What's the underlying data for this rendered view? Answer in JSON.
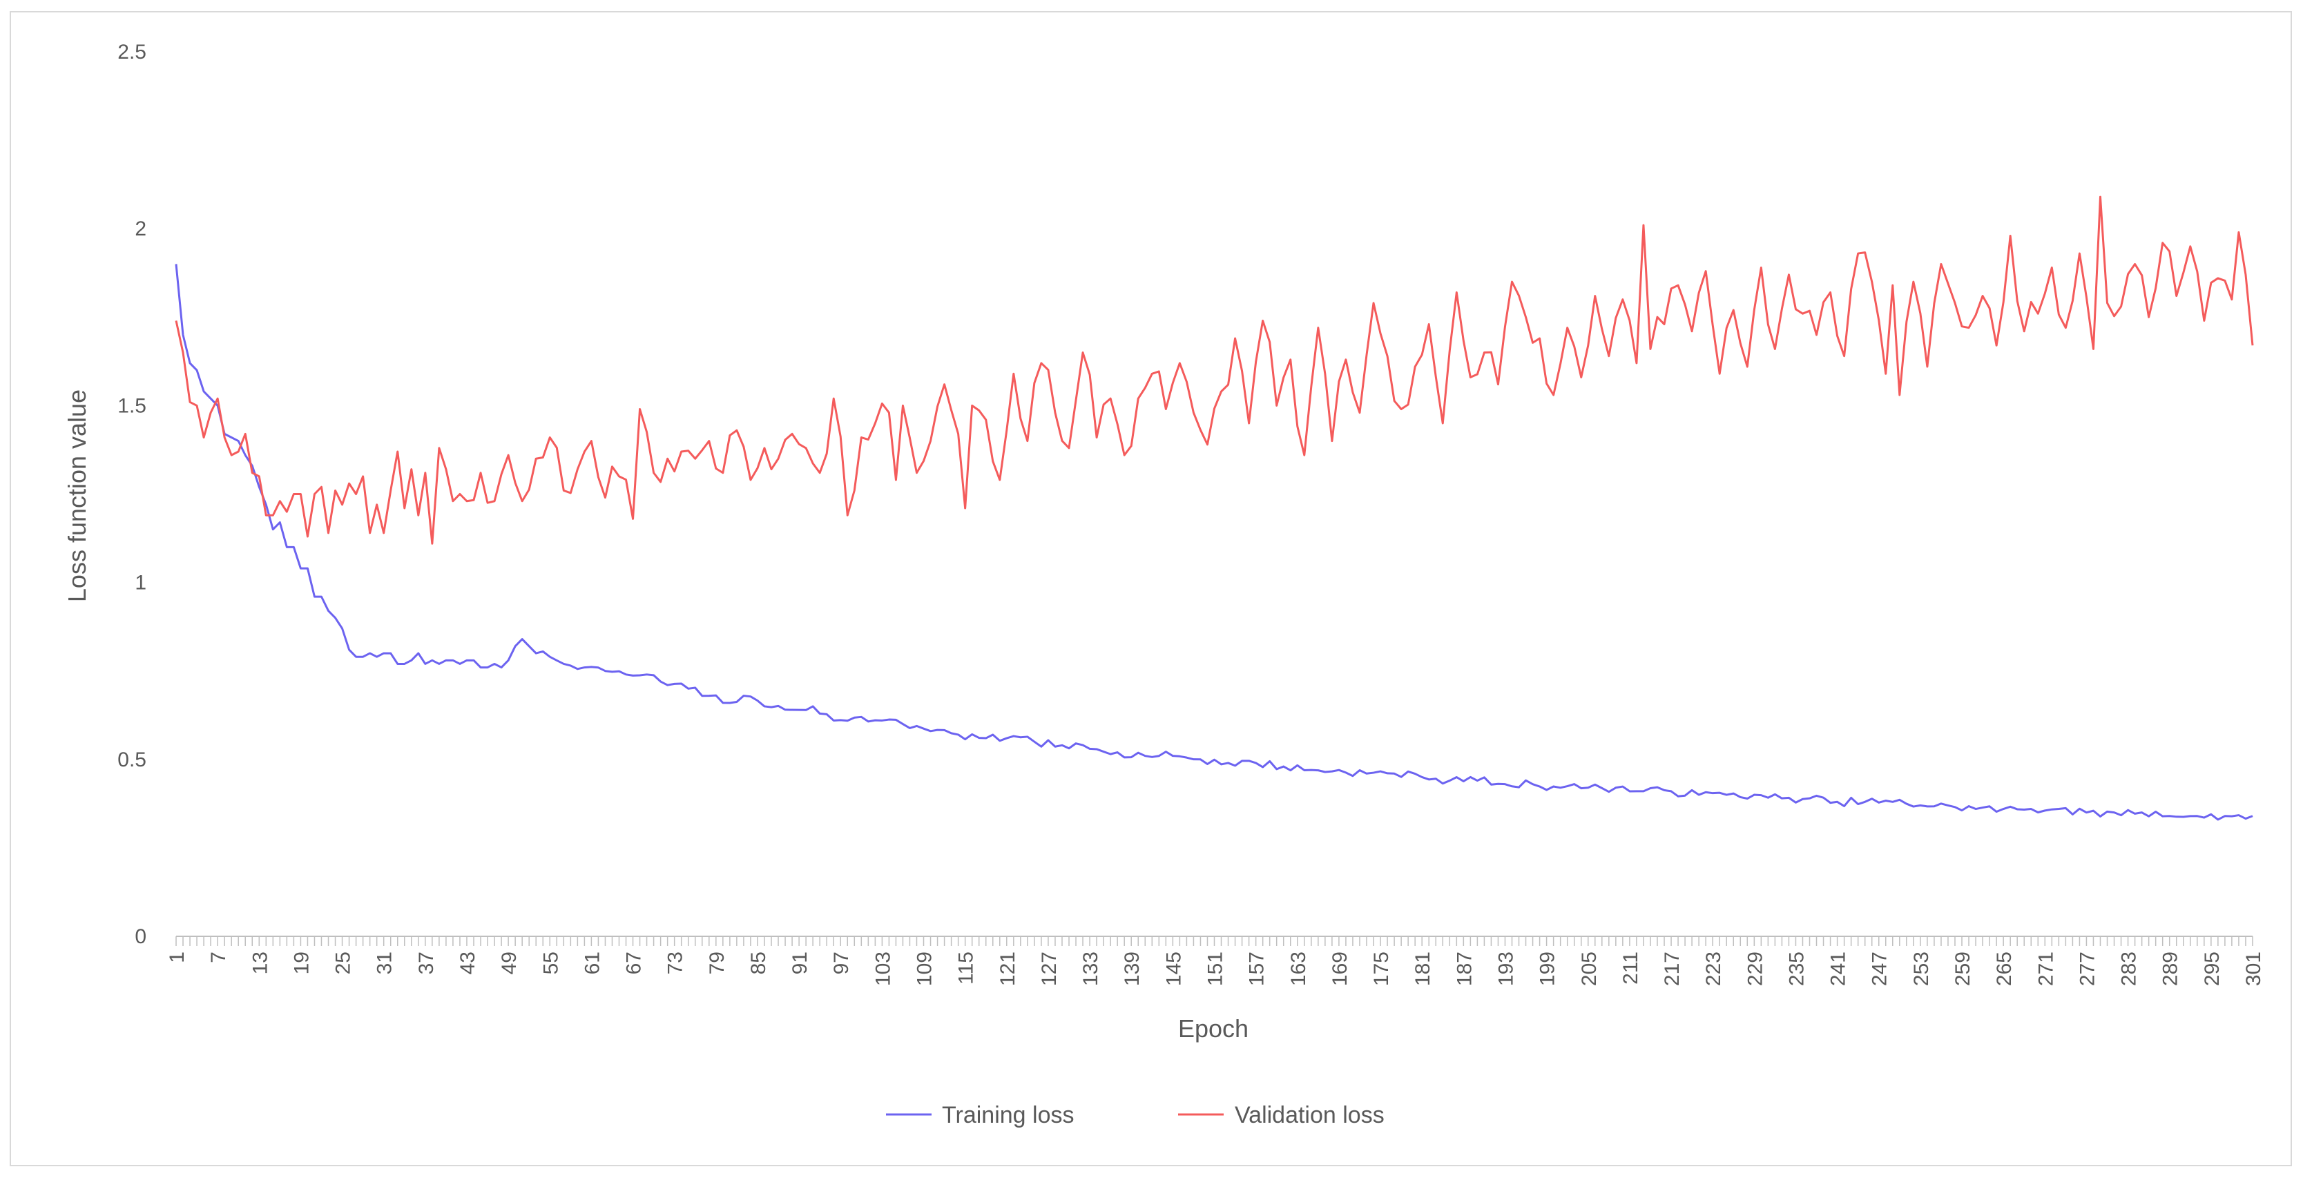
{
  "chart_data": {
    "type": "line",
    "title": "",
    "xlabel": "Epoch",
    "ylabel": "Loss function value",
    "x": {
      "start": 1,
      "end": 301,
      "tick_step": 6
    },
    "ylim": [
      0,
      2.5
    ],
    "yticks": [
      0,
      0.5,
      1,
      1.5,
      2,
      2.5
    ],
    "ytick_labels": [
      "0",
      "0.5",
      "1",
      "1.5",
      "2",
      "2.5"
    ],
    "grid": false,
    "legend_position": "bottom-center",
    "series": [
      {
        "name": "Training loss",
        "color": "#6c63f0",
        "keypoints": [
          [
            1,
            1.9
          ],
          [
            2,
            1.7
          ],
          [
            3,
            1.62
          ],
          [
            4,
            1.6
          ],
          [
            5,
            1.54
          ],
          [
            6,
            1.52
          ],
          [
            7,
            1.5
          ],
          [
            8,
            1.42
          ],
          [
            9,
            1.41
          ],
          [
            10,
            1.4
          ],
          [
            11,
            1.36
          ],
          [
            12,
            1.33
          ],
          [
            13,
            1.27
          ],
          [
            14,
            1.22
          ],
          [
            15,
            1.15
          ],
          [
            16,
            1.17
          ],
          [
            17,
            1.1
          ],
          [
            18,
            1.1
          ],
          [
            19,
            1.04
          ],
          [
            20,
            1.04
          ],
          [
            21,
            0.96
          ],
          [
            22,
            0.96
          ],
          [
            23,
            0.92
          ],
          [
            24,
            0.9
          ],
          [
            25,
            0.87
          ],
          [
            26,
            0.81
          ],
          [
            27,
            0.79
          ],
          [
            28,
            0.79
          ],
          [
            29,
            0.8
          ],
          [
            30,
            0.79
          ],
          [
            31,
            0.8
          ],
          [
            32,
            0.8
          ],
          [
            33,
            0.77
          ],
          [
            34,
            0.77
          ],
          [
            35,
            0.78
          ],
          [
            36,
            0.8
          ],
          [
            37,
            0.77
          ],
          [
            38,
            0.78
          ],
          [
            39,
            0.77
          ],
          [
            40,
            0.78
          ],
          [
            41,
            0.78
          ],
          [
            42,
            0.77
          ],
          [
            43,
            0.78
          ],
          [
            44,
            0.78
          ],
          [
            45,
            0.76
          ],
          [
            46,
            0.76
          ],
          [
            47,
            0.77
          ],
          [
            48,
            0.76
          ],
          [
            49,
            0.78
          ],
          [
            50,
            0.82
          ],
          [
            51,
            0.84
          ],
          [
            52,
            0.82
          ],
          [
            53,
            0.8
          ],
          [
            55,
            0.79
          ],
          [
            57,
            0.77
          ],
          [
            60,
            0.76
          ],
          [
            63,
            0.75
          ],
          [
            66,
            0.74
          ],
          [
            69,
            0.74
          ],
          [
            72,
            0.71
          ],
          [
            75,
            0.7
          ],
          [
            78,
            0.68
          ],
          [
            80,
            0.66
          ],
          [
            83,
            0.68
          ],
          [
            86,
            0.65
          ],
          [
            90,
            0.64
          ],
          [
            93,
            0.65
          ],
          [
            96,
            0.61
          ],
          [
            100,
            0.62
          ],
          [
            103,
            0.61
          ],
          [
            106,
            0.6
          ],
          [
            110,
            0.58
          ],
          [
            114,
            0.57
          ],
          [
            118,
            0.56
          ],
          [
            121,
            0.56
          ],
          [
            125,
            0.55
          ],
          [
            129,
            0.54
          ],
          [
            133,
            0.53
          ],
          [
            137,
            0.52
          ],
          [
            141,
            0.51
          ],
          [
            145,
            0.51
          ],
          [
            149,
            0.5
          ],
          [
            153,
            0.49
          ],
          [
            157,
            0.49
          ],
          [
            161,
            0.48
          ],
          [
            165,
            0.47
          ],
          [
            169,
            0.47
          ],
          [
            173,
            0.46
          ],
          [
            177,
            0.46
          ],
          [
            181,
            0.45
          ],
          [
            185,
            0.44
          ],
          [
            189,
            0.44
          ],
          [
            193,
            0.43
          ],
          [
            197,
            0.43
          ],
          [
            201,
            0.42
          ],
          [
            205,
            0.42
          ],
          [
            209,
            0.42
          ],
          [
            213,
            0.41
          ],
          [
            217,
            0.41
          ],
          [
            221,
            0.4
          ],
          [
            225,
            0.4
          ],
          [
            229,
            0.4
          ],
          [
            233,
            0.39
          ],
          [
            237,
            0.39
          ],
          [
            241,
            0.38
          ],
          [
            245,
            0.38
          ],
          [
            249,
            0.38
          ],
          [
            253,
            0.37
          ],
          [
            257,
            0.37
          ],
          [
            261,
            0.36
          ],
          [
            265,
            0.36
          ],
          [
            269,
            0.36
          ],
          [
            273,
            0.36
          ],
          [
            277,
            0.35
          ],
          [
            281,
            0.35
          ],
          [
            285,
            0.35
          ],
          [
            289,
            0.34
          ],
          [
            293,
            0.34
          ],
          [
            297,
            0.34
          ],
          [
            301,
            0.34
          ]
        ],
        "noise": 0.012,
        "seed": 7
      },
      {
        "name": "Validation loss",
        "color": "#f45b5b",
        "keypoints": [
          [
            1,
            1.74
          ],
          [
            2,
            1.65
          ],
          [
            3,
            1.51
          ],
          [
            4,
            1.5
          ],
          [
            5,
            1.41
          ],
          [
            6,
            1.48
          ],
          [
            7,
            1.52
          ],
          [
            8,
            1.41
          ],
          [
            9,
            1.36
          ],
          [
            10,
            1.37
          ],
          [
            11,
            1.42
          ],
          [
            12,
            1.31
          ],
          [
            13,
            1.3
          ],
          [
            14,
            1.19
          ],
          [
            15,
            1.19
          ],
          [
            16,
            1.23
          ],
          [
            17,
            1.2
          ],
          [
            18,
            1.25
          ],
          [
            19,
            1.25
          ],
          [
            20,
            1.13
          ],
          [
            21,
            1.25
          ],
          [
            22,
            1.27
          ],
          [
            23,
            1.14
          ],
          [
            24,
            1.26
          ],
          [
            25,
            1.22
          ],
          [
            26,
            1.28
          ],
          [
            27,
            1.25
          ],
          [
            28,
            1.3
          ],
          [
            29,
            1.14
          ],
          [
            30,
            1.22
          ],
          [
            31,
            1.14
          ],
          [
            32,
            1.26
          ],
          [
            33,
            1.37
          ],
          [
            34,
            1.21
          ],
          [
            35,
            1.32
          ],
          [
            36,
            1.19
          ],
          [
            37,
            1.31
          ],
          [
            38,
            1.11
          ],
          [
            39,
            1.38
          ],
          [
            40,
            1.32
          ],
          [
            41,
            1.23
          ],
          [
            42,
            1.25
          ],
          [
            43,
            1.23
          ],
          [
            45,
            1.31
          ],
          [
            47,
            1.23
          ],
          [
            49,
            1.36
          ],
          [
            51,
            1.23
          ],
          [
            53,
            1.35
          ],
          [
            55,
            1.41
          ],
          [
            57,
            1.26
          ],
          [
            59,
            1.32
          ],
          [
            61,
            1.4
          ],
          [
            63,
            1.24
          ],
          [
            65,
            1.3
          ],
          [
            67,
            1.18
          ],
          [
            68,
            1.49
          ],
          [
            70,
            1.31
          ],
          [
            72,
            1.35
          ],
          [
            74,
            1.37
          ],
          [
            76,
            1.35
          ],
          [
            78,
            1.4
          ],
          [
            80,
            1.31
          ],
          [
            82,
            1.43
          ],
          [
            84,
            1.29
          ],
          [
            86,
            1.38
          ],
          [
            88,
            1.35
          ],
          [
            90,
            1.42
          ],
          [
            92,
            1.38
          ],
          [
            94,
            1.31
          ],
          [
            96,
            1.52
          ],
          [
            98,
            1.19
          ],
          [
            100,
            1.41
          ],
          [
            102,
            1.45
          ],
          [
            104,
            1.48
          ],
          [
            105,
            1.29
          ],
          [
            106,
            1.5
          ],
          [
            108,
            1.31
          ],
          [
            110,
            1.4
          ],
          [
            112,
            1.56
          ],
          [
            114,
            1.42
          ],
          [
            115,
            1.21
          ],
          [
            116,
            1.5
          ],
          [
            118,
            1.46
          ],
          [
            120,
            1.29
          ],
          [
            122,
            1.59
          ],
          [
            124,
            1.4
          ],
          [
            126,
            1.62
          ],
          [
            128,
            1.48
          ],
          [
            130,
            1.38
          ],
          [
            132,
            1.65
          ],
          [
            134,
            1.41
          ],
          [
            136,
            1.52
          ],
          [
            138,
            1.36
          ],
          [
            140,
            1.52
          ],
          [
            142,
            1.59
          ],
          [
            144,
            1.49
          ],
          [
            146,
            1.62
          ],
          [
            148,
            1.48
          ],
          [
            150,
            1.39
          ],
          [
            152,
            1.54
          ],
          [
            154,
            1.69
          ],
          [
            156,
            1.45
          ],
          [
            158,
            1.74
          ],
          [
            160,
            1.5
          ],
          [
            162,
            1.63
          ],
          [
            164,
            1.36
          ],
          [
            166,
            1.72
          ],
          [
            168,
            1.4
          ],
          [
            170,
            1.63
          ],
          [
            172,
            1.48
          ],
          [
            174,
            1.79
          ],
          [
            176,
            1.64
          ],
          [
            178,
            1.49
          ],
          [
            180,
            1.61
          ],
          [
            182,
            1.73
          ],
          [
            184,
            1.45
          ],
          [
            186,
            1.82
          ],
          [
            188,
            1.58
          ],
          [
            190,
            1.65
          ],
          [
            192,
            1.56
          ],
          [
            194,
            1.85
          ],
          [
            196,
            1.75
          ],
          [
            198,
            1.69
          ],
          [
            200,
            1.53
          ],
          [
            202,
            1.72
          ],
          [
            204,
            1.58
          ],
          [
            206,
            1.81
          ],
          [
            208,
            1.64
          ],
          [
            210,
            1.8
          ],
          [
            212,
            1.62
          ],
          [
            213,
            2.01
          ],
          [
            214,
            1.66
          ],
          [
            216,
            1.73
          ],
          [
            218,
            1.84
          ],
          [
            220,
            1.71
          ],
          [
            222,
            1.88
          ],
          [
            224,
            1.59
          ],
          [
            226,
            1.77
          ],
          [
            228,
            1.61
          ],
          [
            230,
            1.89
          ],
          [
            232,
            1.66
          ],
          [
            234,
            1.87
          ],
          [
            236,
            1.76
          ],
          [
            238,
            1.7
          ],
          [
            240,
            1.82
          ],
          [
            242,
            1.64
          ],
          [
            244,
            1.93
          ],
          [
            246,
            1.85
          ],
          [
            248,
            1.59
          ],
          [
            249,
            1.84
          ],
          [
            250,
            1.53
          ],
          [
            252,
            1.85
          ],
          [
            254,
            1.61
          ],
          [
            256,
            1.9
          ],
          [
            258,
            1.79
          ],
          [
            260,
            1.72
          ],
          [
            262,
            1.81
          ],
          [
            264,
            1.67
          ],
          [
            266,
            1.98
          ],
          [
            268,
            1.71
          ],
          [
            270,
            1.76
          ],
          [
            272,
            1.89
          ],
          [
            274,
            1.72
          ],
          [
            276,
            1.93
          ],
          [
            278,
            1.66
          ],
          [
            279,
            2.09
          ],
          [
            280,
            1.79
          ],
          [
            282,
            1.78
          ],
          [
            284,
            1.9
          ],
          [
            286,
            1.75
          ],
          [
            288,
            1.96
          ],
          [
            290,
            1.81
          ],
          [
            292,
            1.95
          ],
          [
            294,
            1.74
          ],
          [
            296,
            1.86
          ],
          [
            298,
            1.8
          ],
          [
            299,
            1.99
          ],
          [
            300,
            1.87
          ],
          [
            301,
            1.67
          ]
        ],
        "noise": 0.06,
        "seed": 42
      }
    ]
  }
}
